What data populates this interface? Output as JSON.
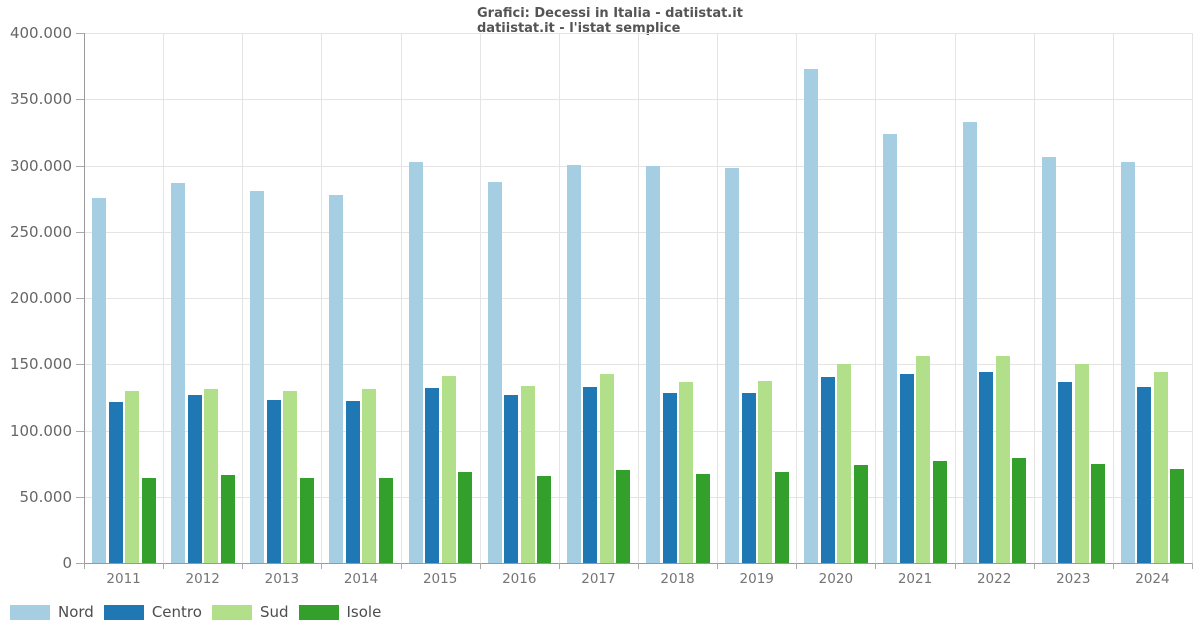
{
  "title": {
    "line1": "Grafici: Decessi in Italia - datiistat.it",
    "line2": "datiistat.it - l'istat semplice"
  },
  "chart_data": {
    "type": "bar",
    "title": "Grafici: Decessi in Italia - datiistat.it",
    "subtitle": "datiistat.it - l'istat semplice",
    "categories": [
      "2011",
      "2012",
      "2013",
      "2014",
      "2015",
      "2016",
      "2017",
      "2018",
      "2019",
      "2020",
      "2021",
      "2022",
      "2023",
      "2024"
    ],
    "series": [
      {
        "name": "Nord",
        "color": "#a6cee3",
        "values": [
          275500,
          286500,
          281000,
          277500,
          302500,
          287500,
          300500,
          299500,
          298000,
          373000,
          323500,
          332500,
          306500,
          302500
        ]
      },
      {
        "name": "Centro",
        "color": "#1f78b4",
        "values": [
          121500,
          126500,
          123000,
          122500,
          132000,
          126500,
          133000,
          128000,
          128000,
          140500,
          142500,
          144000,
          136500,
          133000
        ]
      },
      {
        "name": "Sud",
        "color": "#b2df8a",
        "values": [
          129500,
          131500,
          130000,
          131000,
          141500,
          133500,
          142500,
          136500,
          137500,
          150000,
          156500,
          156500,
          150000,
          144000
        ]
      },
      {
        "name": "Isole",
        "color": "#33a02c",
        "values": [
          64500,
          66500,
          64500,
          64500,
          69000,
          65500,
          70500,
          67500,
          68500,
          74000,
          77000,
          79500,
          75000,
          71000
        ]
      }
    ],
    "xlabel": "",
    "ylabel": "",
    "ylim": [
      0,
      400000
    ],
    "ytick_step": 50000,
    "ytick_labels": [
      "0",
      "50.000",
      "100.000",
      "150.000",
      "200.000",
      "250.000",
      "300.000",
      "350.000",
      "400.000"
    ],
    "grid": true,
    "legend_position": "bottom-left"
  },
  "legend": {
    "items": [
      {
        "label": "Nord",
        "color": "#a6cee3"
      },
      {
        "label": "Centro",
        "color": "#1f78b4"
      },
      {
        "label": "Sud",
        "color": "#b2df8a"
      },
      {
        "label": "Isole",
        "color": "#33a02c"
      }
    ]
  },
  "colors": {
    "background": "#ffffff",
    "grid": "#e4e4e4",
    "axis": "#999999",
    "tick_text": "#666666",
    "title_text": "#545454",
    "legend_text": "#4d4d4d"
  }
}
